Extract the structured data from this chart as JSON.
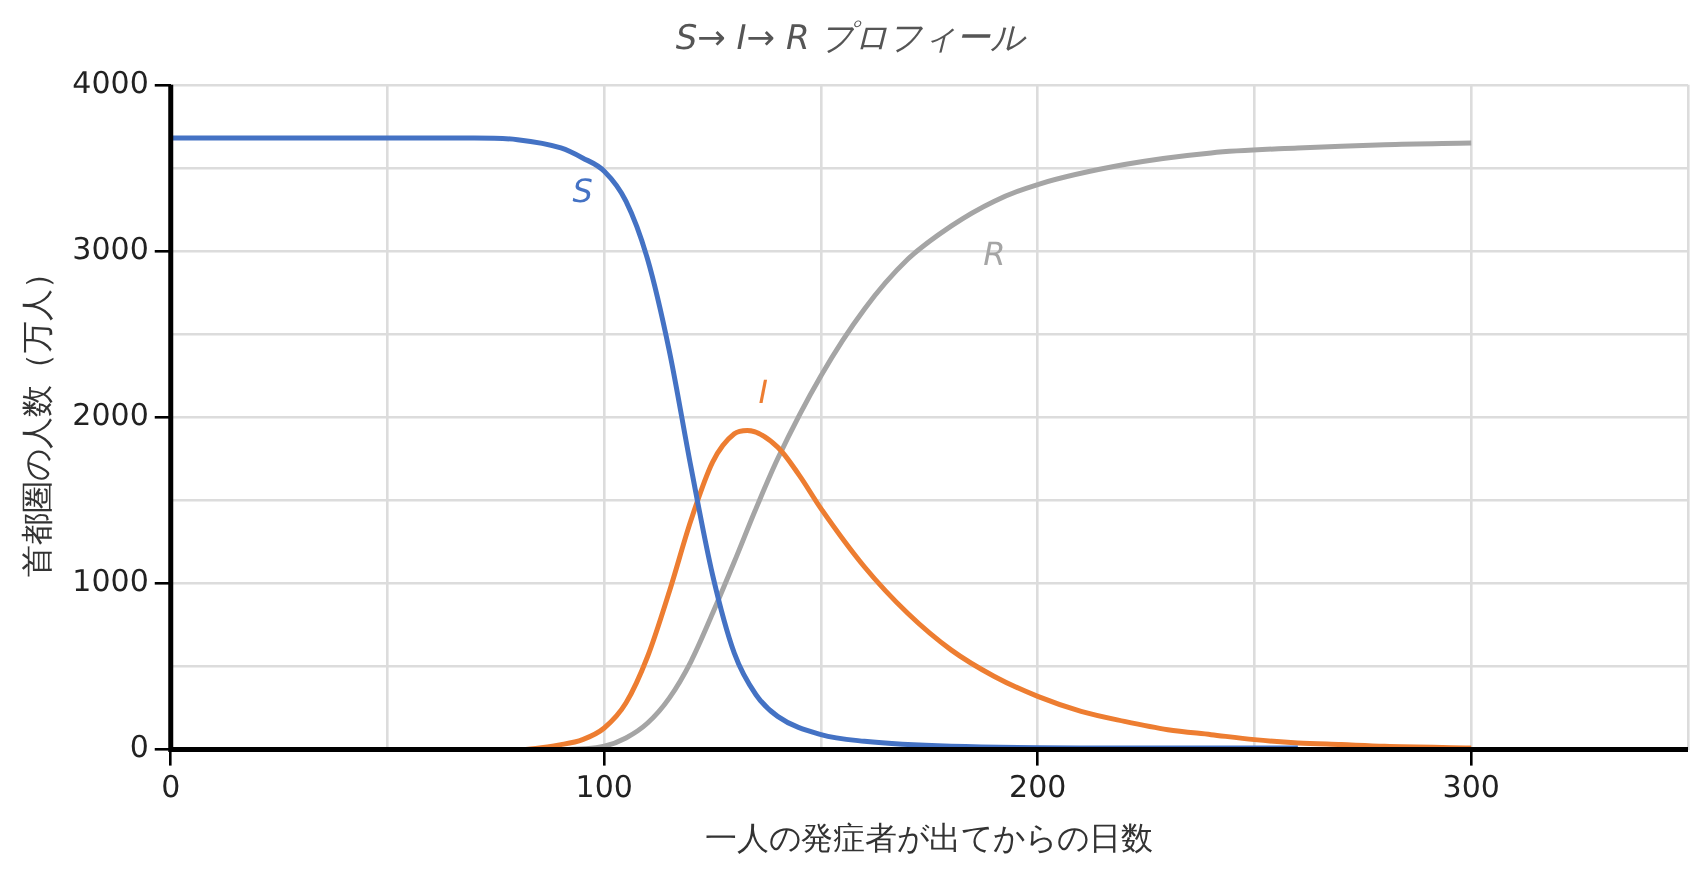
{
  "chart_data": {
    "type": "line",
    "title": "S→ I→ R プロフィール",
    "xlabel": "一人の発症者が出てからの日数",
    "ylabel": "首都圏の人数（万人）",
    "xlim": [
      0,
      350
    ],
    "xticks": [
      0,
      {
        "value": 50,
        "label": null
      },
      100,
      {
        "value": 150,
        "label": null
      },
      200,
      {
        "value": 250,
        "label": null
      },
      300,
      {
        "value": 350,
        "label": null
      }
    ],
    "ylim": [
      0,
      4000
    ],
    "yticks": [
      0,
      {
        "value": 500,
        "label": null
      },
      1000,
      {
        "value": 1500,
        "label": null
      },
      2000,
      {
        "value": 2500,
        "label": null
      },
      3000,
      {
        "value": 3500,
        "label": null
      },
      4000
    ],
    "grid": true,
    "legend": false,
    "marker": "none",
    "line_style": "solid",
    "series": [
      {
        "name": "S",
        "color": "#4472c4",
        "x": [
          0,
          70,
          80,
          90,
          95,
          100,
          105,
          110,
          115,
          120,
          125,
          130,
          135,
          140,
          150,
          160,
          180,
          220,
          260
        ],
        "values": [
          3680,
          3680,
          3670,
          3620,
          3560,
          3480,
          3300,
          2950,
          2400,
          1700,
          1050,
          580,
          330,
          200,
          90,
          50,
          20,
          10,
          10
        ]
      },
      {
        "name": "I",
        "color": "#ed7d31",
        "x": [
          0,
          70,
          80,
          90,
          95,
          100,
          105,
          110,
          115,
          120,
          125,
          130,
          133,
          140,
          145,
          150,
          160,
          170,
          180,
          190,
          200,
          210,
          220,
          230,
          240,
          250,
          260,
          270,
          280,
          300
        ],
        "values": [
          0,
          0,
          0,
          30,
          60,
          130,
          280,
          560,
          950,
          1380,
          1730,
          1900,
          1920,
          1820,
          1650,
          1450,
          1100,
          820,
          600,
          440,
          320,
          230,
          170,
          120,
          90,
          60,
          40,
          30,
          20,
          10
        ]
      },
      {
        "name": "R",
        "color": "#a5a5a5",
        "x": [
          0,
          90,
          100,
          105,
          110,
          115,
          120,
          125,
          130,
          135,
          140,
          150,
          160,
          170,
          180,
          190,
          200,
          220,
          240,
          260,
          280,
          300
        ],
        "values": [
          0,
          0,
          20,
          70,
          160,
          310,
          530,
          820,
          1130,
          1450,
          1750,
          2250,
          2650,
          2950,
          3150,
          3300,
          3400,
          3520,
          3590,
          3620,
          3640,
          3650
        ]
      }
    ]
  }
}
